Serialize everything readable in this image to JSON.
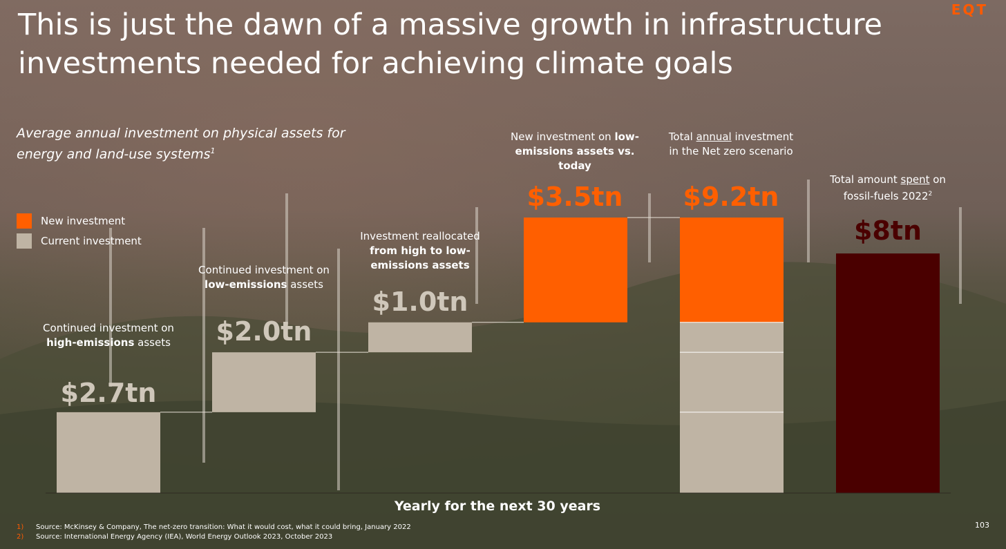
{
  "slide": {
    "title": "This is just the dawn of a massive growth in infrastructure investments needed for achieving climate goals",
    "logo": "EQT",
    "subtitle": "Average annual investment on physical assets for energy and land-use systems",
    "subtitle_footnote": "1",
    "page_number": "103"
  },
  "legend": {
    "new": "New investment",
    "current": "Current investment"
  },
  "steps": [
    {
      "pre": "Continued investment on ",
      "bold": "high-emissions",
      "post": " assets",
      "value_label": "$2.7tn"
    },
    {
      "pre": "Continued investment on ",
      "bold": "low-emissions",
      "post": " assets",
      "value_label": "$2.0tn"
    },
    {
      "pre": "Investment reallocated ",
      "bold": "from high to low-emissions assets",
      "post": "",
      "value_label": "$1.0tn"
    },
    {
      "pre": "New investment on ",
      "bold": "low-emissions assets vs. today",
      "post": "",
      "value_label": "$3.5tn"
    },
    {
      "pre": "Total ",
      "underline": "annual",
      "post": " investment in the Net zero scenario",
      "value_label": "$9.2tn"
    },
    {
      "pre": "Total amount ",
      "underline": "spent",
      "post": " on fossil-fuels 2022",
      "sup": "2",
      "value_label": "$8tn"
    }
  ],
  "axis": {
    "xlabel": "Yearly for the next 30 years"
  },
  "footnotes": [
    {
      "num": "1)",
      "text": "Source: McKinsey & Company, The net-zero transition: What it would cost, what it could bring, January 2022"
    },
    {
      "num": "2)",
      "text": "Source: International Energy Agency (IEA), World Energy Outlook 2023, October 2023"
    }
  ],
  "colors": {
    "new": "#ff5f00",
    "current": "#bfb4a4",
    "fossil": "#4a0000",
    "accent": "#ff5a00"
  },
  "chart_data": {
    "type": "bar",
    "subtype": "waterfall",
    "categories": [
      "$2.7tn",
      "$2.0tn",
      "$1.0tn",
      "$3.5tn",
      "$9.2tn",
      "$8tn"
    ],
    "bars": [
      {
        "start": 0,
        "end": 2.7,
        "kind": "current"
      },
      {
        "start": 2.7,
        "end": 4.7,
        "kind": "current"
      },
      {
        "start": 4.7,
        "end": 5.7,
        "kind": "current"
      },
      {
        "start": 5.7,
        "end": 9.2,
        "kind": "new"
      },
      {
        "segments": [
          {
            "start": 0,
            "end": 2.7,
            "kind": "current"
          },
          {
            "start": 2.7,
            "end": 4.7,
            "kind": "current"
          },
          {
            "start": 4.7,
            "end": 5.7,
            "kind": "current"
          },
          {
            "start": 5.7,
            "end": 9.2,
            "kind": "new"
          }
        ]
      },
      {
        "start": 0,
        "end": 8,
        "kind": "fossil"
      }
    ],
    "ylim": [
      0,
      9.2
    ],
    "xlabel": "Yearly for the next 30 years",
    "grid": false,
    "legend": "left"
  }
}
